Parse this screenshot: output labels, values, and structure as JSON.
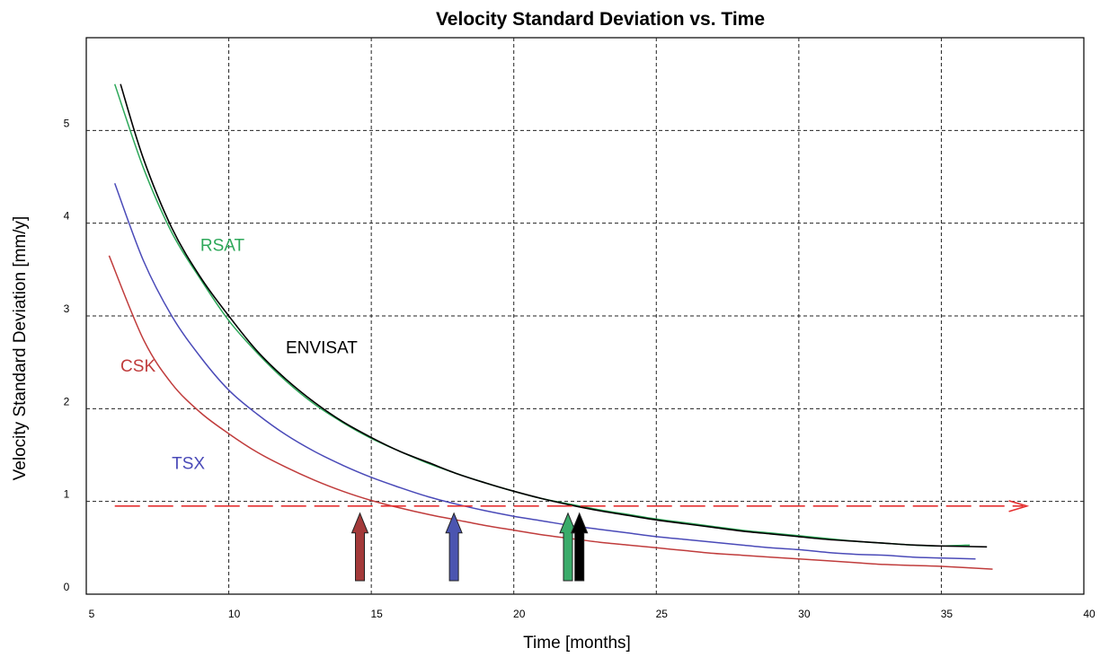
{
  "chart_data": {
    "type": "line",
    "title": "Velocity Standard Deviation vs. Time",
    "xlabel": "Time [months]",
    "ylabel": "Velocity Standard Deviation [mm/y]",
    "xlim": [
      5,
      40
    ],
    "ylim": [
      0,
      6
    ],
    "xticks": [
      5,
      10,
      15,
      20,
      25,
      30,
      35,
      40
    ],
    "yticks": [
      0,
      1,
      2,
      3,
      4,
      5
    ],
    "grid": true,
    "threshold": {
      "y": 0.95,
      "x_start": 6,
      "x_end": 38,
      "color": "#e53030"
    },
    "series": [
      {
        "name": "RSAT",
        "color": "#2ea85a",
        "x": [
          6,
          7,
          8,
          9,
          10,
          11,
          12,
          13,
          14,
          15,
          16,
          17,
          18,
          19,
          20,
          21,
          22,
          23,
          24,
          25,
          26,
          27,
          28,
          29,
          30,
          31,
          32,
          33,
          34,
          35,
          36
        ],
        "values": [
          5.5,
          4.6,
          3.9,
          3.4,
          2.95,
          2.6,
          2.3,
          2.05,
          1.85,
          1.68,
          1.54,
          1.41,
          1.3,
          1.2,
          1.11,
          1.03,
          0.97,
          0.91,
          0.86,
          0.81,
          0.77,
          0.73,
          0.69,
          0.66,
          0.63,
          0.6,
          0.57,
          0.55,
          0.53,
          0.52,
          0.53
        ]
      },
      {
        "name": "ENVISAT",
        "color": "#000000",
        "x": [
          6.2,
          7,
          8,
          9,
          10,
          11,
          12,
          13,
          14,
          15,
          16,
          17,
          18,
          19,
          20,
          21,
          22,
          23,
          24,
          25,
          26,
          27,
          28,
          29,
          30,
          31,
          32,
          33,
          34,
          35,
          36.6
        ],
        "values": [
          5.5,
          4.7,
          3.95,
          3.42,
          3.0,
          2.62,
          2.32,
          2.07,
          1.86,
          1.69,
          1.54,
          1.42,
          1.3,
          1.2,
          1.11,
          1.03,
          0.96,
          0.9,
          0.85,
          0.8,
          0.76,
          0.72,
          0.68,
          0.65,
          0.62,
          0.59,
          0.57,
          0.55,
          0.53,
          0.52,
          0.51
        ]
      },
      {
        "name": "TSX",
        "color": "#4a4ab8",
        "x": [
          6,
          7,
          8,
          9,
          10,
          11,
          12,
          13,
          14,
          15,
          16,
          17,
          18,
          19,
          20,
          21,
          22,
          23,
          24,
          25,
          26,
          27,
          28,
          29,
          30,
          31,
          32,
          33,
          34,
          35,
          36.2
        ],
        "values": [
          4.43,
          3.6,
          3.0,
          2.56,
          2.2,
          1.94,
          1.72,
          1.54,
          1.39,
          1.26,
          1.15,
          1.05,
          0.97,
          0.9,
          0.84,
          0.79,
          0.74,
          0.7,
          0.66,
          0.62,
          0.59,
          0.56,
          0.53,
          0.5,
          0.48,
          0.45,
          0.43,
          0.42,
          0.4,
          0.39,
          0.38
        ]
      },
      {
        "name": "CSK",
        "color": "#c03c3c",
        "x": [
          5.8,
          7,
          8,
          9,
          10,
          11,
          12,
          13,
          14,
          15,
          16,
          17,
          18,
          19,
          20,
          21,
          22,
          23,
          24,
          25,
          26,
          27,
          28,
          29,
          30,
          31,
          32,
          33,
          34,
          35,
          36.8
        ],
        "values": [
          3.65,
          2.75,
          2.27,
          1.96,
          1.73,
          1.53,
          1.37,
          1.23,
          1.11,
          1.01,
          0.93,
          0.86,
          0.8,
          0.74,
          0.69,
          0.64,
          0.6,
          0.56,
          0.53,
          0.5,
          0.47,
          0.44,
          0.42,
          0.4,
          0.38,
          0.36,
          0.34,
          0.32,
          0.31,
          0.3,
          0.27
        ]
      }
    ],
    "labels": [
      {
        "text": "RSAT",
        "x": 9.0,
        "y": 3.7,
        "color": "#2ea85a"
      },
      {
        "text": "ENVISAT",
        "x": 12.0,
        "y": 2.6,
        "color": "#000000"
      },
      {
        "text": "CSK",
        "x": 6.2,
        "y": 2.4,
        "color": "#c03c3c"
      },
      {
        "text": "TSX",
        "x": 8.0,
        "y": 1.35,
        "color": "#4a4ab8"
      }
    ],
    "arrows": [
      {
        "series": "CSK",
        "x": 14.6,
        "color": "#a33a3a"
      },
      {
        "series": "TSX",
        "x": 17.9,
        "color": "#4b55b0"
      },
      {
        "series": "RSAT",
        "x": 21.9,
        "color": "#3aab6a"
      },
      {
        "series": "ENVISAT",
        "x": 22.3,
        "color": "#000000"
      }
    ]
  }
}
